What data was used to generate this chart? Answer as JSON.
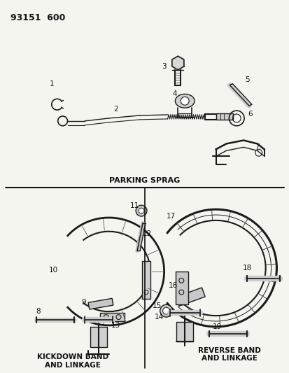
{
  "title": "93151  600",
  "parking_sprag_label": "PARKING SPRAG",
  "kickdown_label": "KICKDOWN BAND\nAND LINKAGE",
  "reverse_label": "REVERSE BAND\nAND LINKAGE",
  "bg_color": "#f5f5f0",
  "line_color": "#1a1a1a",
  "text_color": "#111111",
  "figsize": [
    4.14,
    5.33
  ],
  "dpi": 100
}
